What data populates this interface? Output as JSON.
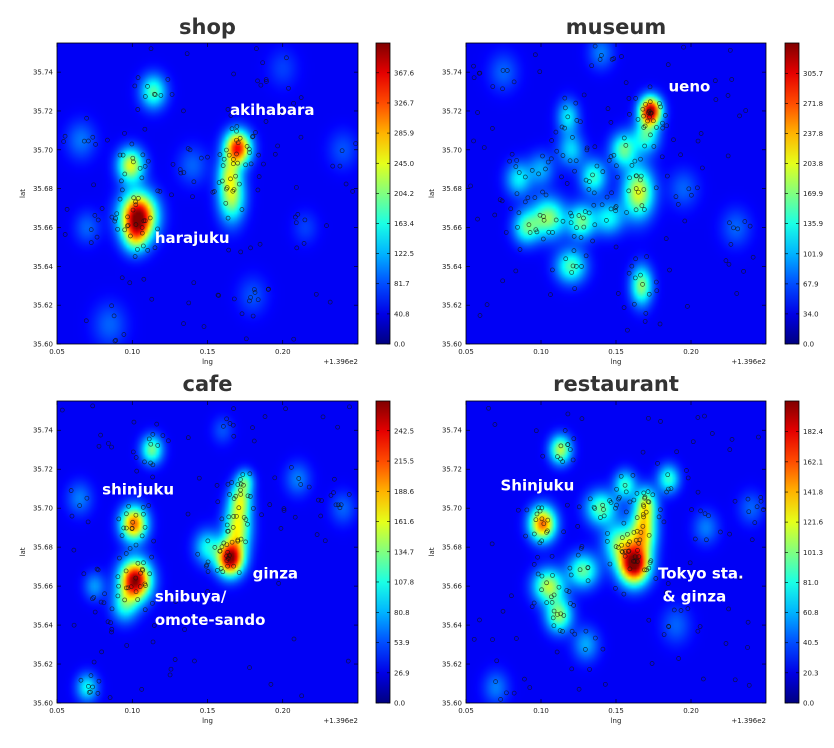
{
  "chart_data": [
    {
      "type": "heatmap",
      "title": "shop",
      "xlabel": "lng",
      "ylabel": "lat",
      "x_offset_label": "+1.396e2",
      "xlim": [
        0.05,
        0.25
      ],
      "ylim": [
        35.6,
        35.755
      ],
      "x_ticks": [
        "0.05",
        "0.10",
        "0.15",
        "0.20"
      ],
      "y_ticks": [
        "35.60",
        "35.62",
        "35.64",
        "35.66",
        "35.68",
        "35.70",
        "35.72",
        "35.74"
      ],
      "colorbar_ticks": [
        "0.0",
        "40.8",
        "81.7",
        "122.5",
        "163.4",
        "204.2",
        "245.0",
        "285.9",
        "326.7",
        "367.6"
      ],
      "colorbar_max": 408,
      "hotspots": [
        {
          "x": 0.104,
          "y": 35.666,
          "sx": 0.008,
          "sy": 0.008,
          "w": 1.0
        },
        {
          "x": 0.102,
          "y": 35.655,
          "sx": 0.006,
          "sy": 0.006,
          "w": 0.35
        },
        {
          "x": 0.099,
          "y": 35.692,
          "sx": 0.006,
          "sy": 0.006,
          "w": 0.55
        },
        {
          "x": 0.17,
          "y": 35.701,
          "sx": 0.006,
          "sy": 0.006,
          "w": 0.85
        },
        {
          "x": 0.166,
          "y": 35.676,
          "sx": 0.006,
          "sy": 0.009,
          "w": 0.5
        },
        {
          "x": 0.164,
          "y": 35.688,
          "sx": 0.005,
          "sy": 0.006,
          "w": 0.3
        },
        {
          "x": 0.114,
          "y": 35.73,
          "sx": 0.006,
          "sy": 0.006,
          "w": 0.38
        },
        {
          "x": 0.066,
          "y": 35.705,
          "sx": 0.007,
          "sy": 0.007,
          "w": 0.14
        },
        {
          "x": 0.07,
          "y": 35.66,
          "sx": 0.006,
          "sy": 0.006,
          "w": 0.12
        },
        {
          "x": 0.085,
          "y": 35.61,
          "sx": 0.008,
          "sy": 0.008,
          "w": 0.12
        },
        {
          "x": 0.14,
          "y": 35.692,
          "sx": 0.007,
          "sy": 0.007,
          "w": 0.12
        },
        {
          "x": 0.24,
          "y": 35.7,
          "sx": 0.007,
          "sy": 0.007,
          "w": 0.1
        },
        {
          "x": 0.18,
          "y": 35.625,
          "sx": 0.007,
          "sy": 0.007,
          "w": 0.1
        },
        {
          "x": 0.215,
          "y": 35.66,
          "sx": 0.006,
          "sy": 0.006,
          "w": 0.08
        },
        {
          "x": 0.2,
          "y": 35.742,
          "sx": 0.007,
          "sy": 0.007,
          "w": 0.08
        }
      ],
      "annotations": [
        {
          "text": "akihabara",
          "x": 0.165,
          "y": 35.718
        },
        {
          "text": "harajuku",
          "x": 0.115,
          "y": 35.652
        }
      ]
    },
    {
      "type": "heatmap",
      "title": "museum",
      "xlabel": "lng",
      "ylabel": "lat",
      "x_offset_label": "+1.396e2",
      "xlim": [
        0.05,
        0.25
      ],
      "ylim": [
        35.6,
        35.755
      ],
      "x_ticks": [
        "0.05",
        "0.10",
        "0.15",
        "0.20"
      ],
      "y_ticks": [
        "35.60",
        "35.62",
        "35.64",
        "35.66",
        "35.68",
        "35.70",
        "35.72",
        "35.74"
      ],
      "colorbar_ticks": [
        "0.0",
        "34.0",
        "67.9",
        "101.9",
        "135.9",
        "169.9",
        "203.8",
        "237.8",
        "271.8",
        "305.7"
      ],
      "colorbar_max": 340,
      "hotspots": [
        {
          "x": 0.173,
          "y": 35.72,
          "sx": 0.005,
          "sy": 0.005,
          "w": 1.0
        },
        {
          "x": 0.17,
          "y": 35.707,
          "sx": 0.006,
          "sy": 0.006,
          "w": 0.35
        },
        {
          "x": 0.165,
          "y": 35.678,
          "sx": 0.007,
          "sy": 0.009,
          "w": 0.55
        },
        {
          "x": 0.155,
          "y": 35.7,
          "sx": 0.006,
          "sy": 0.006,
          "w": 0.4
        },
        {
          "x": 0.105,
          "y": 35.665,
          "sx": 0.008,
          "sy": 0.007,
          "w": 0.45
        },
        {
          "x": 0.09,
          "y": 35.66,
          "sx": 0.006,
          "sy": 0.006,
          "w": 0.35
        },
        {
          "x": 0.127,
          "y": 35.663,
          "sx": 0.006,
          "sy": 0.006,
          "w": 0.4
        },
        {
          "x": 0.135,
          "y": 35.686,
          "sx": 0.006,
          "sy": 0.006,
          "w": 0.35
        },
        {
          "x": 0.12,
          "y": 35.7,
          "sx": 0.006,
          "sy": 0.006,
          "w": 0.25
        },
        {
          "x": 0.085,
          "y": 35.685,
          "sx": 0.006,
          "sy": 0.006,
          "w": 0.28
        },
        {
          "x": 0.12,
          "y": 35.64,
          "sx": 0.007,
          "sy": 0.006,
          "w": 0.38
        },
        {
          "x": 0.167,
          "y": 35.63,
          "sx": 0.005,
          "sy": 0.007,
          "w": 0.45
        },
        {
          "x": 0.145,
          "y": 35.665,
          "sx": 0.007,
          "sy": 0.006,
          "w": 0.3
        },
        {
          "x": 0.118,
          "y": 35.717,
          "sx": 0.005,
          "sy": 0.006,
          "w": 0.28
        },
        {
          "x": 0.1,
          "y": 35.69,
          "sx": 0.006,
          "sy": 0.006,
          "w": 0.2
        },
        {
          "x": 0.195,
          "y": 35.68,
          "sx": 0.007,
          "sy": 0.007,
          "w": 0.12
        },
        {
          "x": 0.23,
          "y": 35.66,
          "sx": 0.007,
          "sy": 0.007,
          "w": 0.12
        },
        {
          "x": 0.075,
          "y": 35.74,
          "sx": 0.007,
          "sy": 0.007,
          "w": 0.12
        },
        {
          "x": 0.14,
          "y": 35.75,
          "sx": 0.006,
          "sy": 0.006,
          "w": 0.15
        }
      ],
      "annotations": [
        {
          "text": "ueno",
          "x": 0.185,
          "y": 35.73
        }
      ]
    },
    {
      "type": "heatmap",
      "title": "cafe",
      "xlabel": "lng",
      "ylabel": "lat",
      "x_offset_label": "+1.396e2",
      "xlim": [
        0.05,
        0.25
      ],
      "ylim": [
        35.6,
        35.755
      ],
      "x_ticks": [
        "0.05",
        "0.10",
        "0.15",
        "0.20"
      ],
      "y_ticks": [
        "35.60",
        "35.62",
        "35.64",
        "35.66",
        "35.68",
        "35.70",
        "35.72",
        "35.74"
      ],
      "colorbar_ticks": [
        "0.0",
        "26.9",
        "53.9",
        "80.8",
        "107.8",
        "134.7",
        "161.6",
        "188.6",
        "215.5",
        "242.5"
      ],
      "colorbar_max": 269,
      "hotspots": [
        {
          "x": 0.102,
          "y": 35.663,
          "sx": 0.007,
          "sy": 0.007,
          "w": 1.0
        },
        {
          "x": 0.101,
          "y": 35.692,
          "sx": 0.006,
          "sy": 0.006,
          "w": 0.75
        },
        {
          "x": 0.165,
          "y": 35.674,
          "sx": 0.006,
          "sy": 0.006,
          "w": 0.95
        },
        {
          "x": 0.17,
          "y": 35.69,
          "sx": 0.006,
          "sy": 0.009,
          "w": 0.55
        },
        {
          "x": 0.172,
          "y": 35.705,
          "sx": 0.005,
          "sy": 0.006,
          "w": 0.4
        },
        {
          "x": 0.15,
          "y": 35.68,
          "sx": 0.006,
          "sy": 0.006,
          "w": 0.3
        },
        {
          "x": 0.113,
          "y": 35.73,
          "sx": 0.005,
          "sy": 0.005,
          "w": 0.42
        },
        {
          "x": 0.175,
          "y": 35.714,
          "sx": 0.004,
          "sy": 0.004,
          "w": 0.3
        },
        {
          "x": 0.095,
          "y": 35.65,
          "sx": 0.006,
          "sy": 0.006,
          "w": 0.3
        },
        {
          "x": 0.07,
          "y": 35.608,
          "sx": 0.005,
          "sy": 0.005,
          "w": 0.3
        },
        {
          "x": 0.075,
          "y": 35.66,
          "sx": 0.005,
          "sy": 0.005,
          "w": 0.18
        },
        {
          "x": 0.065,
          "y": 35.705,
          "sx": 0.006,
          "sy": 0.006,
          "w": 0.15
        },
        {
          "x": 0.21,
          "y": 35.715,
          "sx": 0.006,
          "sy": 0.006,
          "w": 0.15
        },
        {
          "x": 0.24,
          "y": 35.7,
          "sx": 0.006,
          "sy": 0.006,
          "w": 0.12
        },
        {
          "x": 0.16,
          "y": 35.74,
          "sx": 0.005,
          "sy": 0.005,
          "w": 0.1
        }
      ],
      "annotations": [
        {
          "text": "shinjuku",
          "x": 0.08,
          "y": 35.707
        },
        {
          "text": "ginza",
          "x": 0.18,
          "y": 35.664
        },
        {
          "text": "shibuya/",
          "x": 0.115,
          "y": 35.652
        },
        {
          "text": "omote-sando",
          "x": 0.115,
          "y": 35.64
        }
      ]
    },
    {
      "type": "heatmap",
      "title": "restaurant",
      "xlabel": "lng",
      "ylabel": "lat",
      "x_offset_label": "+1.396e2",
      "xlim": [
        0.05,
        0.25
      ],
      "ylim": [
        35.6,
        35.755
      ],
      "x_ticks": [
        "0.05",
        "0.10",
        "0.15",
        "0.20"
      ],
      "y_ticks": [
        "35.60",
        "35.62",
        "35.64",
        "35.66",
        "35.68",
        "35.70",
        "35.72",
        "35.74"
      ],
      "colorbar_ticks": [
        "0.0",
        "20.3",
        "40.5",
        "60.8",
        "81.0",
        "101.3",
        "121.6",
        "141.8",
        "162.1",
        "182.4"
      ],
      "colorbar_max": 203,
      "hotspots": [
        {
          "x": 0.162,
          "y": 35.671,
          "sx": 0.007,
          "sy": 0.007,
          "w": 1.0
        },
        {
          "x": 0.168,
          "y": 35.688,
          "sx": 0.006,
          "sy": 0.008,
          "w": 0.6
        },
        {
          "x": 0.17,
          "y": 35.702,
          "sx": 0.005,
          "sy": 0.006,
          "w": 0.45
        },
        {
          "x": 0.152,
          "y": 35.682,
          "sx": 0.007,
          "sy": 0.007,
          "w": 0.4
        },
        {
          "x": 0.101,
          "y": 35.692,
          "sx": 0.006,
          "sy": 0.006,
          "w": 0.75
        },
        {
          "x": 0.105,
          "y": 35.66,
          "sx": 0.007,
          "sy": 0.006,
          "w": 0.5
        },
        {
          "x": 0.112,
          "y": 35.645,
          "sx": 0.006,
          "sy": 0.006,
          "w": 0.45
        },
        {
          "x": 0.128,
          "y": 35.668,
          "sx": 0.007,
          "sy": 0.006,
          "w": 0.4
        },
        {
          "x": 0.14,
          "y": 35.7,
          "sx": 0.007,
          "sy": 0.006,
          "w": 0.4
        },
        {
          "x": 0.113,
          "y": 35.73,
          "sx": 0.005,
          "sy": 0.005,
          "w": 0.5
        },
        {
          "x": 0.156,
          "y": 35.712,
          "sx": 0.005,
          "sy": 0.005,
          "w": 0.35
        },
        {
          "x": 0.185,
          "y": 35.715,
          "sx": 0.005,
          "sy": 0.005,
          "w": 0.35
        },
        {
          "x": 0.13,
          "y": 35.63,
          "sx": 0.006,
          "sy": 0.006,
          "w": 0.2
        },
        {
          "x": 0.07,
          "y": 35.608,
          "sx": 0.006,
          "sy": 0.006,
          "w": 0.15
        },
        {
          "x": 0.21,
          "y": 35.69,
          "sx": 0.006,
          "sy": 0.006,
          "w": 0.15
        },
        {
          "x": 0.24,
          "y": 35.7,
          "sx": 0.006,
          "sy": 0.006,
          "w": 0.12
        },
        {
          "x": 0.19,
          "y": 35.64,
          "sx": 0.007,
          "sy": 0.007,
          "w": 0.12
        }
      ],
      "annotations": [
        {
          "text": "Shinjuku",
          "x": 0.073,
          "y": 35.709
        },
        {
          "text": "Tokyo sta.",
          "x": 0.178,
          "y": 35.664
        },
        {
          "text": "& ginza",
          "x": 0.181,
          "y": 35.652
        }
      ]
    }
  ]
}
